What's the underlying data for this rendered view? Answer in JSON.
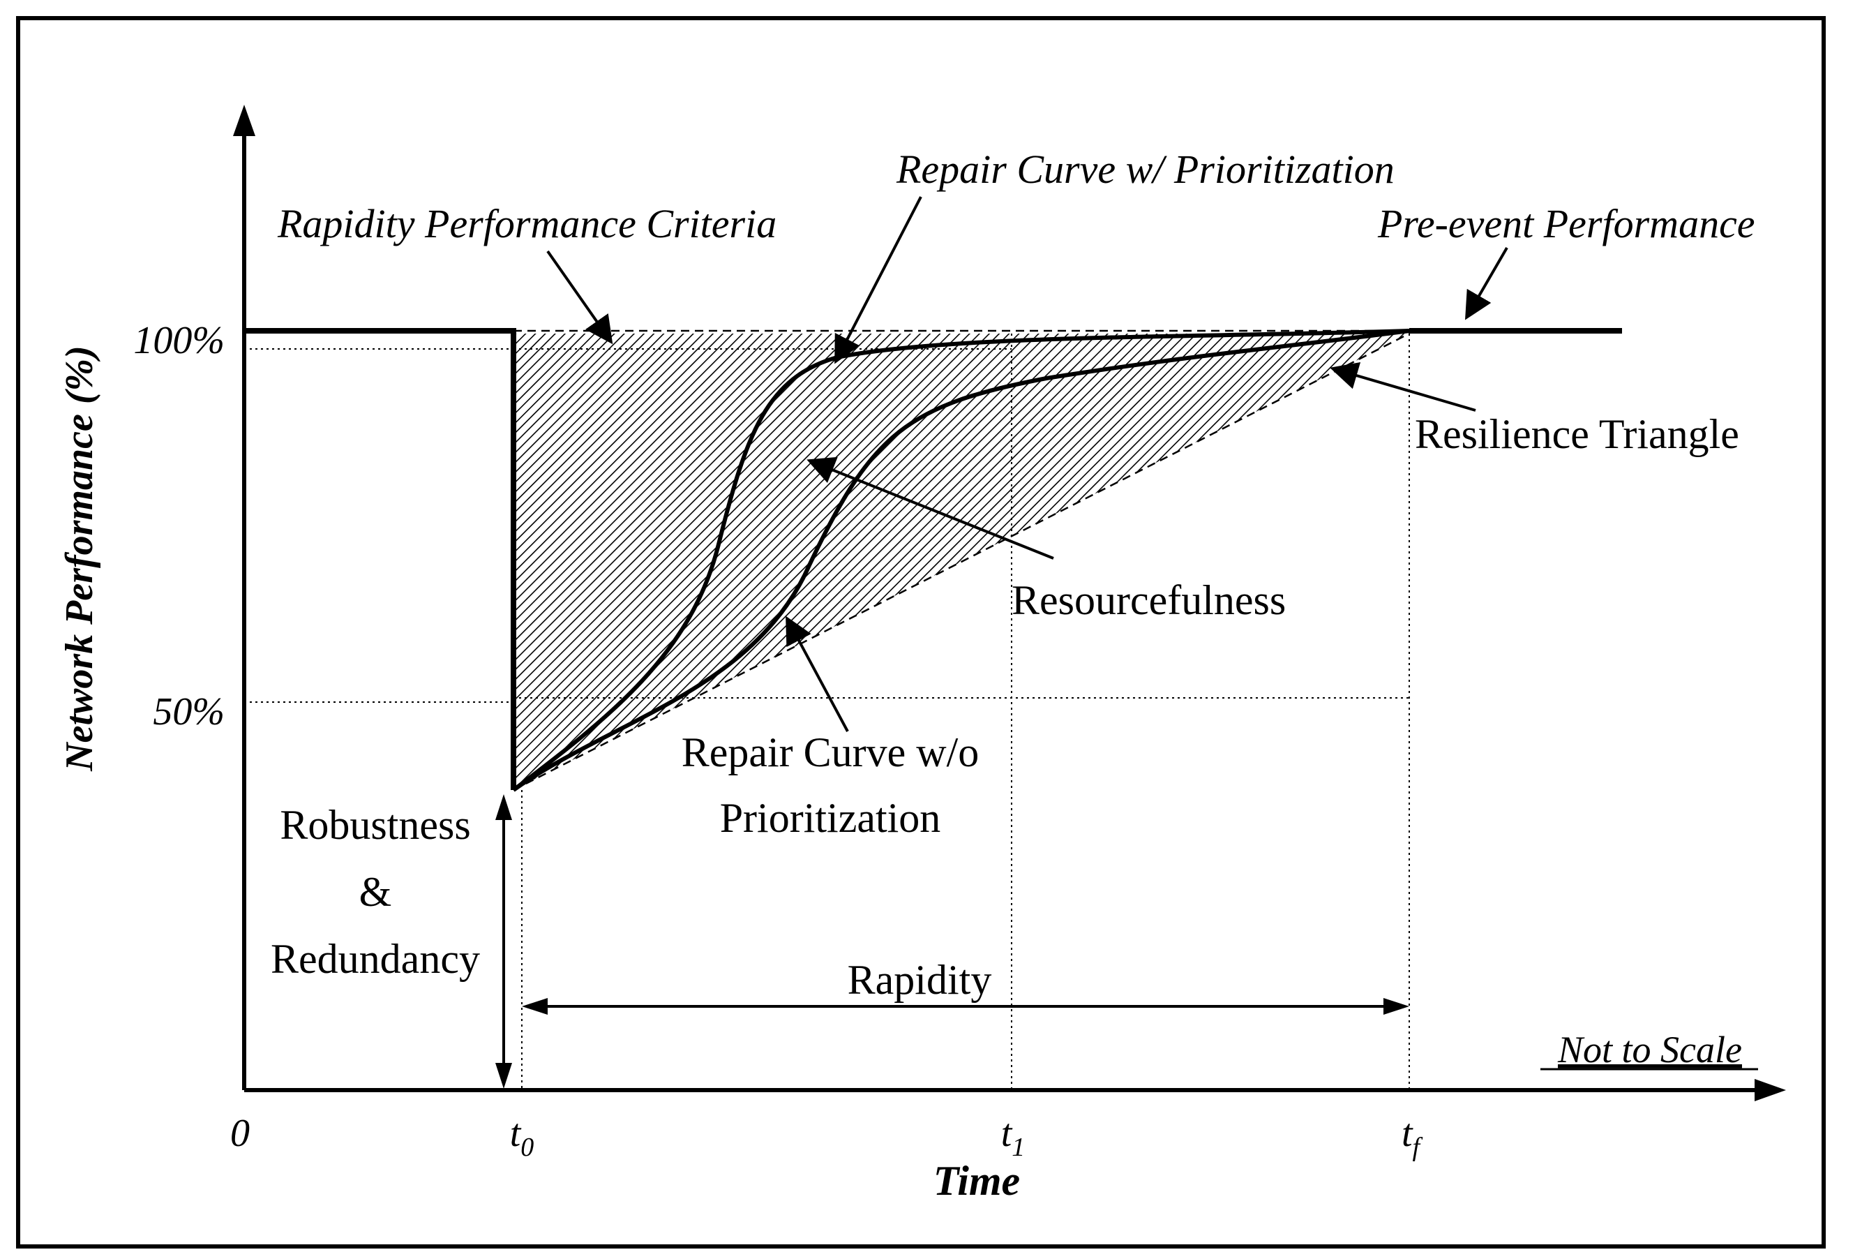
{
  "axes": {
    "y_label": "Network Performance (%)",
    "x_label": "Time",
    "origin_label": "0",
    "y_ticks": [
      "100%",
      "50%"
    ],
    "x_ticks": [
      {
        "base": "t",
        "sub": "0"
      },
      {
        "base": "t",
        "sub": "1"
      },
      {
        "base": "t",
        "sub": "f"
      }
    ]
  },
  "annotations": {
    "repair_with_priority": "Repair Curve w/ Prioritization",
    "rapidity_criteria": "Rapidity Performance Criteria",
    "pre_event": "Pre-event Performance",
    "resilience_triangle": "Resilience Triangle",
    "resourcefulness": "Resourcefulness",
    "repair_without_priority_line1": "Repair Curve w/o",
    "repair_without_priority_line2": "Prioritization",
    "robustness_line1": "Robustness",
    "robustness_line2": "&",
    "robustness_line3": "Redundancy",
    "rapidity": "Rapidity",
    "not_to_scale": "Not to Scale"
  },
  "colors": {
    "ink": "#000000",
    "background": "#ffffff",
    "hatch": "#000000"
  }
}
